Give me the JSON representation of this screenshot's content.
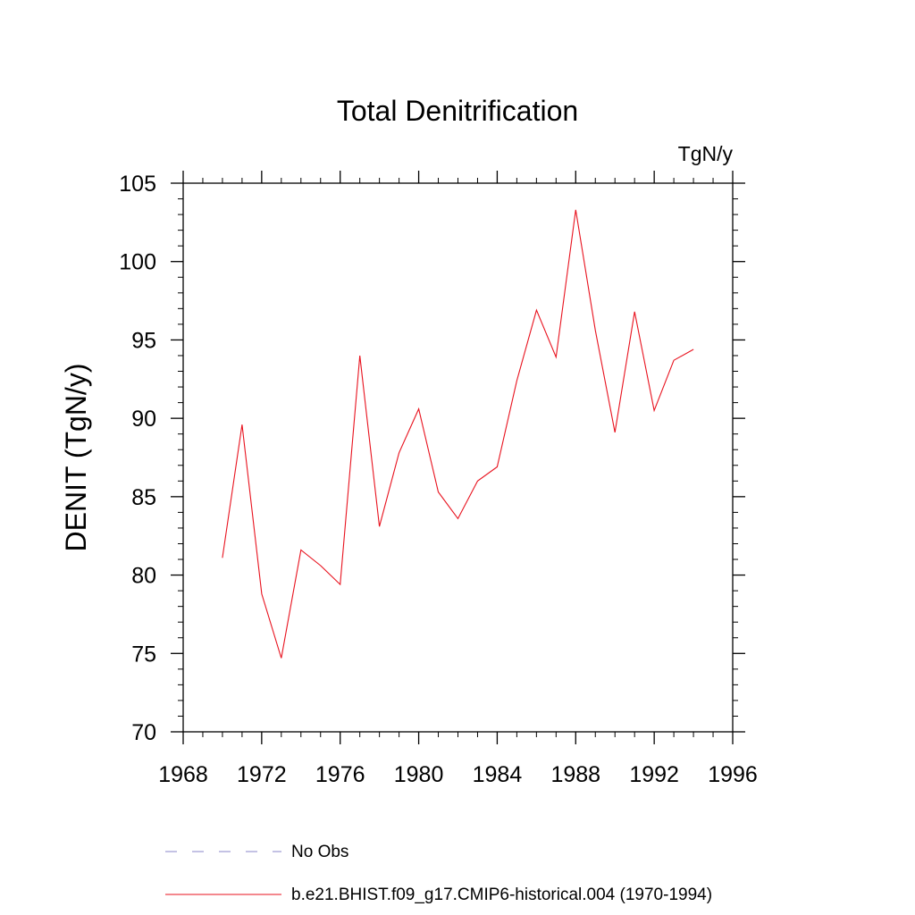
{
  "chart_data": {
    "type": "line",
    "title": "Total Denitrification",
    "units_label": "TgN/y",
    "xlabel": "",
    "ylabel": "DENIT  (TgN/y)",
    "xlim": [
      1968,
      1996
    ],
    "ylim": [
      70,
      105
    ],
    "xticks": [
      1968,
      1972,
      1976,
      1980,
      1984,
      1988,
      1992,
      1996
    ],
    "yticks": [
      70,
      75,
      80,
      85,
      90,
      95,
      100,
      105
    ],
    "grid": false,
    "legend_position": "bottom",
    "series": [
      {
        "name": "b.e21.BHIST.f09_g17.CMIP6-historical.004 (1970-1994)",
        "color": "#e8121e",
        "style": "solid",
        "x": [
          1970,
          1971,
          1972,
          1973,
          1974,
          1975,
          1976,
          1977,
          1978,
          1979,
          1980,
          1981,
          1982,
          1983,
          1984,
          1985,
          1986,
          1987,
          1988,
          1989,
          1990,
          1991,
          1992,
          1993,
          1994
        ],
        "y": [
          81.1,
          89.6,
          78.8,
          74.7,
          81.6,
          80.6,
          79.4,
          94.0,
          83.1,
          87.8,
          90.6,
          85.3,
          83.6,
          86.0,
          86.9,
          92.4,
          96.9,
          93.9,
          103.3,
          95.6,
          89.1,
          96.8,
          90.5,
          93.7,
          94.4
        ]
      }
    ],
    "legend": [
      {
        "label": "No Obs",
        "color": "#8a86c8",
        "style": "dashed"
      },
      {
        "label": "b.e21.BHIST.f09_g17.CMIP6-historical.004 (1970-1994)",
        "color": "#e8121e",
        "style": "solid"
      }
    ]
  }
}
